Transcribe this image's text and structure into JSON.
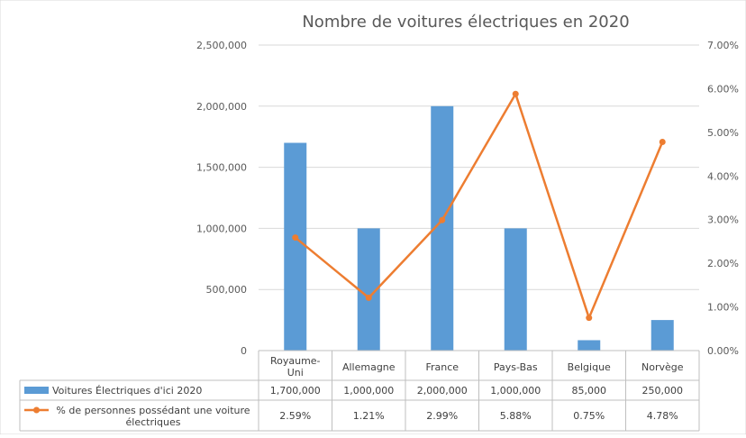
{
  "chart_data": {
    "type": "bar",
    "title": "Nombre de voitures électriques en 2020",
    "categories": [
      "Royaume-Uni",
      "Allemagne",
      "France",
      "Pays-Bas",
      "Belgique",
      "Norvège"
    ],
    "category_lines": [
      [
        "Royaume-",
        "Uni"
      ],
      [
        "Allemagne"
      ],
      [
        "France"
      ],
      [
        "Pays-Bas"
      ],
      [
        "Belgique"
      ],
      [
        "Norvège"
      ]
    ],
    "series": [
      {
        "name": "Voitures Électriques d'ici 2020",
        "type": "bar",
        "axis": "left",
        "color": "#5B9BD5",
        "values": [
          1700000,
          1000000,
          2000000,
          1000000,
          85000,
          250000
        ],
        "table_values": [
          "1,700,000",
          "1,000,000",
          "2,000,000",
          "1,000,000",
          "85,000",
          "250,000"
        ]
      },
      {
        "name": "% de personnes possédant une voiture électriques",
        "name_lines": [
          "% de personnes possédant une voiture",
          "électriques"
        ],
        "type": "line",
        "axis": "right",
        "color": "#ED7D31",
        "values": [
          2.59,
          1.21,
          2.99,
          5.88,
          0.75,
          4.78
        ],
        "table_values": [
          "2.59%",
          "1.21%",
          "2.99%",
          "5.88%",
          "0.75%",
          "4.78%"
        ]
      }
    ],
    "y_left": {
      "ylim": [
        0,
        2500000
      ],
      "ticks": [
        0,
        500000,
        1000000,
        1500000,
        2000000,
        2500000
      ],
      "tick_labels": [
        "0",
        "500,000",
        "1,000,000",
        "1,500,000",
        "2,000,000",
        "2,500,000"
      ]
    },
    "y_right": {
      "ylim": [
        0,
        7
      ],
      "ticks": [
        0,
        1,
        2,
        3,
        4,
        5,
        6,
        7
      ],
      "tick_labels": [
        "0.00%",
        "1.00%",
        "2.00%",
        "3.00%",
        "4.00%",
        "5.00%",
        "6.00%",
        "7.00%"
      ]
    },
    "grid": true,
    "legend": "data table below chart"
  }
}
